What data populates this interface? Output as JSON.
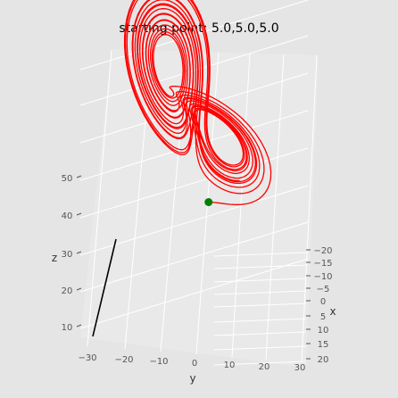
{
  "chart_data": {
    "type": "line",
    "projection": "3d",
    "title": "starting point: 5.0,5.0,5.0",
    "xlabel": "x",
    "ylabel": "y",
    "zlabel": "z",
    "x_ticks": [
      "−20",
      "−15",
      "−10",
      "−5",
      "0",
      "5",
      "10",
      "15",
      "20"
    ],
    "y_ticks": [
      "−30",
      "−20",
      "−10",
      "0",
      "10",
      "20",
      "30"
    ],
    "z_ticks": [
      "10",
      "20",
      "30",
      "40",
      "50"
    ],
    "xlim": [
      -22,
      22
    ],
    "ylim": [
      -33,
      33
    ],
    "zlim": [
      5,
      55
    ],
    "grid": true,
    "series": [
      {
        "type": "trajectory",
        "system": "Lorenz attractor",
        "color": "#ff0000",
        "start": [
          5.0,
          5.0,
          5.0
        ]
      },
      {
        "type": "marker",
        "color": "#008000",
        "point": [
          5.0,
          5.0,
          5.0
        ]
      },
      {
        "type": "segment",
        "color": "#000000",
        "points": [
          [
            0,
            -30,
            5
          ],
          [
            0,
            -30,
            25
          ]
        ]
      }
    ]
  }
}
